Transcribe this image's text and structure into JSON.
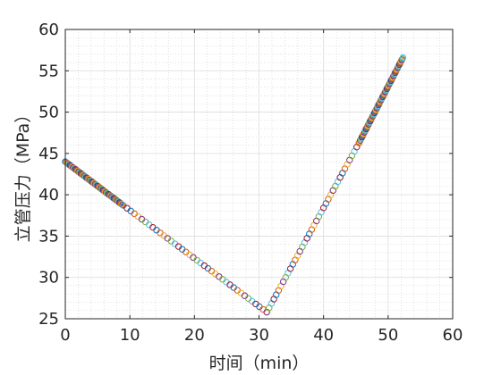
{
  "chart_data": {
    "type": "scatter",
    "marker": "open-circle",
    "title": "",
    "xlabel": "时间（min）",
    "ylabel": "立管压力（MPa）",
    "xlim": [
      0,
      60
    ],
    "ylim": [
      25,
      60
    ],
    "xticks": [
      "0",
      "10",
      "20",
      "30",
      "40",
      "50",
      "60"
    ],
    "yticks": [
      "25",
      "30",
      "35",
      "40",
      "45",
      "50",
      "55",
      "60"
    ],
    "grid": "major and minor",
    "legend": "none",
    "colors": [
      "#0072BD",
      "#D95319",
      "#EDB120",
      "#7E2F8E",
      "#77AC30",
      "#4DBEEE",
      "#A2142F"
    ],
    "segments": [
      {
        "x_start": 0.0,
        "y_start": 44.0,
        "x_end": 9.0,
        "y_end": 38.7,
        "points": 75
      },
      {
        "x_start": 9.0,
        "y_start": 38.7,
        "x_end": 31.2,
        "y_end": 25.8,
        "points": 40
      },
      {
        "x_start": 31.2,
        "y_start": 25.8,
        "x_end": 45.5,
        "y_end": 46.3,
        "points": 40
      },
      {
        "x_start": 45.5,
        "y_start": 46.3,
        "x_end": 52.3,
        "y_end": 56.6,
        "points": 75
      }
    ]
  }
}
